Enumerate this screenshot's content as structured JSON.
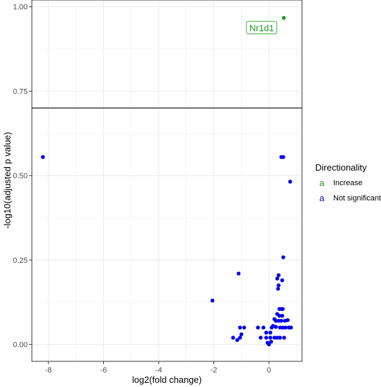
{
  "chart_data": {
    "type": "scatter",
    "title": "",
    "xlabel": "log2(fold change)",
    "ylabel": "-log10(adjusted p value)",
    "xlim": [
      -8.6,
      1.2
    ],
    "ylim": [
      -0.05,
      1.02
    ],
    "xticks": [
      -8,
      -6,
      -4,
      -2,
      0
    ],
    "xtick_labels": [
      "-8",
      "-6",
      "-4",
      "-2",
      "0"
    ],
    "yticks": [
      0.0,
      0.25,
      0.5,
      0.75,
      1.0
    ],
    "ytick_labels": [
      "0.00",
      "0.25",
      "0.50",
      "0.75",
      "1.00"
    ],
    "grid": true,
    "threshold_line": 0.7,
    "legend": {
      "title": "Directionality",
      "position": "right",
      "key_glyph": "a",
      "entries": [
        {
          "label": "Increase",
          "color": "#1a9a1a"
        },
        {
          "label": "Not significant",
          "color": "#0000ee"
        }
      ]
    },
    "annotations": [
      {
        "text": "Nr1d1",
        "x": 0.54,
        "y": 0.967,
        "color": "#1a9a1a"
      }
    ],
    "series": [
      {
        "name": "Increase",
        "color": "#1a9a1a",
        "points": [
          [
            0.54,
            0.967
          ]
        ]
      },
      {
        "name": "Not significant",
        "color": "#0000ee",
        "points": [
          [
            -8.2,
            0.555
          ],
          [
            0.45,
            0.555
          ],
          [
            0.52,
            0.555
          ],
          [
            0.77,
            0.482
          ],
          [
            0.52,
            0.258
          ],
          [
            -1.1,
            0.21
          ],
          [
            0.35,
            0.205
          ],
          [
            0.3,
            0.195
          ],
          [
            0.48,
            0.19
          ],
          [
            0.35,
            0.175
          ],
          [
            0.33,
            0.165
          ],
          [
            -2.05,
            0.13
          ],
          [
            0.38,
            0.105
          ],
          [
            0.45,
            0.105
          ],
          [
            0.5,
            0.105
          ],
          [
            0.3,
            0.09
          ],
          [
            0.38,
            0.085
          ],
          [
            0.48,
            0.085
          ],
          [
            0.2,
            0.075
          ],
          [
            0.25,
            0.07
          ],
          [
            0.35,
            0.07
          ],
          [
            0.45,
            0.07
          ],
          [
            0.58,
            0.07
          ],
          [
            0.68,
            0.072
          ],
          [
            -1.05,
            0.05
          ],
          [
            -0.9,
            0.05
          ],
          [
            -0.4,
            0.05
          ],
          [
            -0.2,
            0.05
          ],
          [
            0.1,
            0.05
          ],
          [
            0.15,
            0.055
          ],
          [
            0.25,
            0.052
          ],
          [
            0.4,
            0.05
          ],
          [
            0.5,
            0.05
          ],
          [
            0.6,
            0.05
          ],
          [
            0.72,
            0.05
          ],
          [
            0.8,
            0.05
          ],
          [
            -1.0,
            0.03
          ],
          [
            -0.1,
            0.035
          ],
          [
            0.05,
            0.035
          ],
          [
            -1.3,
            0.02
          ],
          [
            -1.05,
            0.02
          ],
          [
            -0.3,
            0.02
          ],
          [
            -0.1,
            0.02
          ],
          [
            0.05,
            0.02
          ],
          [
            0.2,
            0.02
          ],
          [
            0.3,
            0.02
          ],
          [
            0.4,
            0.02
          ],
          [
            0.55,
            0.02
          ],
          [
            -1.15,
            0.013
          ],
          [
            -0.05,
            0.005
          ],
          [
            0.0,
            0.0
          ],
          [
            0.08,
            0.008
          ]
        ]
      }
    ]
  }
}
